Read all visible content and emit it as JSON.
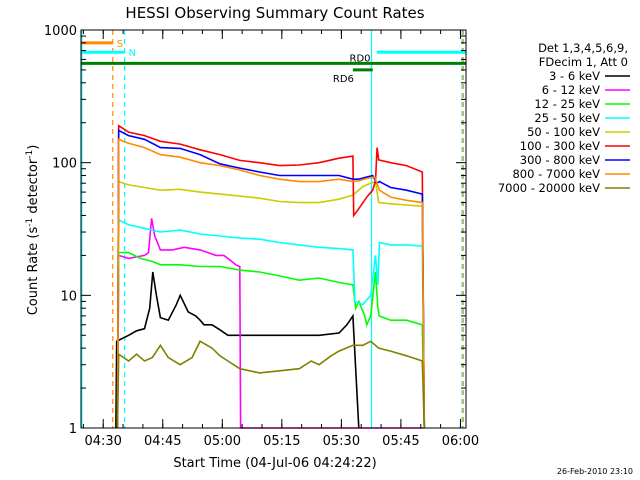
{
  "chart_data": {
    "type": "line",
    "title": "HESSI Observing Summary Count Rates",
    "xlabel": "Start Time (04-Jul-06 04:24:22)",
    "ylabel_parts": [
      "Count Rate (s",
      "-1",
      " detector",
      "-1",
      ")"
    ],
    "yscale": "log",
    "xlim_minutes": [
      0,
      97
    ],
    "ylim": [
      1,
      1000
    ],
    "x_ticks": [
      {
        "label": "04:30",
        "value": 5.6
      },
      {
        "label": "04:45",
        "value": 20.6
      },
      {
        "label": "05:00",
        "value": 35.6
      },
      {
        "label": "05:15",
        "value": 50.6
      },
      {
        "label": "05:30",
        "value": 65.6
      },
      {
        "label": "05:45",
        "value": 80.6
      },
      {
        "label": "06:00",
        "value": 95.6
      }
    ],
    "y_ticks": [
      {
        "label": "1",
        "value": 1
      },
      {
        "label": "10",
        "value": 10
      },
      {
        "label": "100",
        "value": 100
      },
      {
        "label": "1000",
        "value": 1000
      }
    ],
    "legend": {
      "placement": "right",
      "header": [
        "Det 1,3,4,5,6,9,",
        "FDecim 1, Att 0"
      ],
      "entries": [
        {
          "label": "3 - 6 keV",
          "color": "#000000"
        },
        {
          "label": "6 - 12 keV",
          "color": "#ff00ff"
        },
        {
          "label": "12 - 25 keV",
          "color": "#00ff00"
        },
        {
          "label": "25 - 50 keV",
          "color": "#00ffff"
        },
        {
          "label": "50 - 100 keV",
          "color": "#cccc00"
        },
        {
          "label": "100 - 300 keV",
          "color": "#ff0000"
        },
        {
          "label": "300 - 800 keV",
          "color": "#0000ff"
        },
        {
          "label": "800 - 7000 keV",
          "color": "#ff8c00"
        },
        {
          "label": "7000 - 20000 keV",
          "color": "#808000"
        }
      ]
    },
    "series": [
      {
        "name": "3 - 6 keV",
        "color": "#000000",
        "x": [
          8.8,
          9.0,
          12,
          14,
          16,
          17.3,
          18.1,
          19,
          20,
          22,
          24,
          25,
          27,
          28.9,
          30,
          31,
          33,
          35,
          37,
          40,
          45,
          50,
          55,
          60,
          65,
          67,
          68.5,
          70
        ],
        "y": [
          0,
          4.5,
          5,
          5.4,
          5.6,
          8,
          15,
          10,
          6.8,
          6.5,
          8.5,
          10,
          7.5,
          7,
          6.5,
          6,
          6,
          5.5,
          5,
          5,
          5,
          5,
          5,
          5,
          5.2,
          6,
          7,
          0
        ]
      },
      {
        "name": "6 - 12 keV",
        "color": "#ff00ff",
        "x": [
          9.2,
          9.5,
          12,
          14,
          16,
          17,
          17.8,
          18.6,
          20,
          23,
          26,
          30,
          34,
          36,
          38,
          39,
          40,
          40.2,
          86,
          86.2
        ],
        "y": [
          0,
          20,
          19,
          19.5,
          20,
          21,
          38,
          28,
          22,
          22,
          23,
          22,
          20,
          20,
          18,
          17,
          16.5,
          0,
          1,
          0
        ]
      },
      {
        "name": "12 - 25 keV",
        "color": "#00ff00",
        "x": [
          9.2,
          9.5,
          12,
          15,
          18,
          20,
          25,
          30,
          35,
          40,
          45,
          50,
          55,
          60,
          65,
          68.5,
          69.2,
          70,
          71.5,
          72,
          73,
          74.2,
          74.8,
          75.1,
          78,
          82,
          86,
          86.5
        ],
        "y": [
          0,
          21,
          21,
          19,
          18,
          17,
          17,
          16.5,
          16.5,
          15.5,
          15,
          14,
          13,
          13.5,
          12.5,
          12,
          8,
          9,
          7,
          6,
          7,
          15,
          8,
          7,
          6.5,
          6.5,
          6,
          0
        ]
      },
      {
        "name": "25 - 50 keV",
        "color": "#00ffff",
        "x": [
          9.2,
          9.5,
          12,
          16,
          20,
          25,
          30,
          35,
          40,
          45,
          50,
          55,
          60,
          65,
          68.5,
          69,
          71,
          73,
          74.2,
          74.8,
          75.2,
          78,
          82,
          86,
          86.5
        ],
        "y": [
          0,
          37,
          34,
          32,
          30,
          31,
          29,
          28,
          27,
          26.5,
          25,
          24,
          23,
          22.5,
          22,
          9,
          8.5,
          10,
          20,
          12,
          25,
          24,
          24,
          23.5,
          0
        ]
      },
      {
        "name": "50 - 100 keV",
        "color": "#cccc00",
        "x": [
          9.2,
          9.5,
          12,
          16,
          20,
          25,
          30,
          35,
          40,
          45,
          50,
          55,
          60,
          65,
          68.5,
          71,
          72,
          73,
          74.2,
          75,
          78,
          82,
          86,
          86.5
        ],
        "y": [
          0,
          72,
          68,
          65,
          62,
          63,
          60,
          58,
          56,
          54,
          51,
          50,
          50,
          53,
          57,
          66,
          68,
          70,
          72,
          50,
          49,
          48,
          47,
          0
        ]
      },
      {
        "name": "100 - 300 keV",
        "color": "#ff0000",
        "x": [
          9.2,
          9.5,
          12,
          16,
          20,
          25,
          30,
          35,
          40,
          45,
          50,
          55,
          60,
          65,
          68.5,
          68.7,
          70,
          72,
          73.5,
          74.2,
          74.6,
          75,
          78,
          82,
          86,
          86.5
        ],
        "y": [
          0,
          190,
          170,
          160,
          145,
          138,
          125,
          115,
          104,
          100,
          95,
          96,
          100,
          108,
          112,
          40,
          45,
          55,
          62,
          73,
          130,
          105,
          100,
          95,
          85,
          0
        ]
      },
      {
        "name": "300 - 800 keV",
        "color": "#0000ff",
        "x": [
          9.2,
          9.5,
          12,
          16,
          20,
          25,
          30,
          35,
          40,
          45,
          50,
          55,
          60,
          65,
          68.5,
          70,
          72,
          73.5,
          74.5,
          75.2,
          78,
          82,
          86,
          86.5
        ],
        "y": [
          0,
          175,
          160,
          150,
          130,
          128,
          115,
          98,
          91,
          85,
          80,
          80,
          80,
          80,
          75,
          75,
          78,
          80,
          70,
          72,
          65,
          62,
          58,
          0
        ]
      },
      {
        "name": "800 - 7000 keV",
        "color": "#ff8c00",
        "x": [
          9.2,
          9.5,
          12,
          16,
          20,
          25,
          30,
          35,
          40,
          45,
          50,
          55,
          60,
          65,
          68.5,
          70,
          72,
          74,
          75.2,
          78,
          82,
          86,
          86.5
        ],
        "y": [
          0,
          150,
          140,
          130,
          115,
          110,
          100,
          95,
          88,
          80,
          75,
          72,
          72,
          75,
          72,
          73,
          76,
          78,
          62,
          55,
          52,
          50,
          0
        ]
      },
      {
        "name": "7000 - 20000 keV",
        "color": "#808000",
        "x": [
          9.2,
          9.5,
          12,
          14,
          16,
          18,
          20,
          22,
          25,
          28,
          30,
          33,
          35,
          37,
          40,
          45,
          50,
          55,
          58,
          60,
          63,
          65,
          68.5,
          71,
          73,
          75,
          78,
          82,
          86,
          86.5
        ],
        "y": [
          0,
          3.6,
          3.2,
          3.6,
          3.2,
          3.4,
          4.2,
          3.4,
          3,
          3.4,
          4.5,
          4,
          3.5,
          3.2,
          2.8,
          2.6,
          2.7,
          2.8,
          3.2,
          3,
          3.5,
          3.8,
          4.2,
          4.2,
          4.5,
          4,
          3.8,
          3.5,
          3.2,
          0
        ]
      }
    ],
    "vertical_markers": [
      {
        "x": 8.0,
        "color": "#ff8c00",
        "style": "dashed"
      },
      {
        "x": 11.0,
        "color": "#00ffff",
        "style": "dashed"
      },
      {
        "x": 0.2,
        "color": "#00ffff",
        "style": "solid"
      },
      {
        "x": 73.2,
        "color": "#00ffff",
        "style": "solid"
      },
      {
        "x": 96.0,
        "color": "#00ffff",
        "style": "dashed"
      },
      {
        "x": 96.3,
        "color": "#ff8c00",
        "style": "dashed"
      }
    ],
    "status_bars": [
      {
        "label": "S",
        "color": "#ff8c00",
        "y": 800,
        "x_start": 0,
        "x_end": 8.0
      },
      {
        "label": "N",
        "color": "#00ffff",
        "y": 680,
        "x_start": 0,
        "x_end": 11.0
      },
      {
        "label": "",
        "color": "#00ffff",
        "y": 680,
        "x_start": 74.5,
        "x_end": 97
      },
      {
        "label": "RD0",
        "color": "#008000",
        "y": 560,
        "x_start": 0,
        "x_end": 97
      },
      {
        "label": "RD6",
        "color": "#008000",
        "y": 500,
        "x_start": 68.5,
        "x_end": 73.5
      }
    ],
    "timestamp": "26-Feb-2010 23:10"
  }
}
